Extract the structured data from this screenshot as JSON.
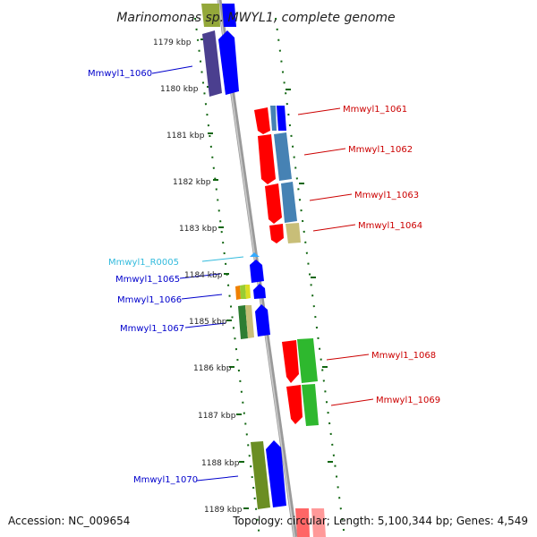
{
  "title": "Marinomonas sp. MWYL1, complete genome",
  "footer": {
    "accession": "Accession: NC_009654",
    "topology": "Topology: circular; Length: 5,100,344 bp; Genes: 4,549"
  },
  "ticks": [
    "1179 kbp",
    "1180 kbp",
    "1181 kbp",
    "1182 kbp",
    "1183 kbp",
    "1184 kbp",
    "1185 kbp",
    "1186 kbp",
    "1187 kbp",
    "1188 kbp",
    "1189 kbp"
  ],
  "labels": [
    {
      "text": "Mmwyl1_1060",
      "color": "#0000cc"
    },
    {
      "text": "Mmwyl1_1061",
      "color": "#cc0000"
    },
    {
      "text": "Mmwyl1_1062",
      "color": "#cc0000"
    },
    {
      "text": "Mmwyl1_1063",
      "color": "#cc0000"
    },
    {
      "text": "Mmwyl1_1064",
      "color": "#cc0000"
    },
    {
      "text": "Mmwyl1_R0005",
      "color": "#33bbdd"
    },
    {
      "text": "Mmwyl1_1065",
      "color": "#0000cc"
    },
    {
      "text": "Mmwyl1_1066",
      "color": "#0000cc"
    },
    {
      "text": "Mmwyl1_1067",
      "color": "#0000cc"
    },
    {
      "text": "Mmwyl1_1068",
      "color": "#cc0000"
    },
    {
      "text": "Mmwyl1_1069",
      "color": "#cc0000"
    },
    {
      "text": "Mmwyl1_1070",
      "color": "#0000cc"
    }
  ],
  "colors": {
    "forward": "#0000ff",
    "reverse": "#ff0000",
    "backbone": "#888888",
    "dots": "#116611",
    "olive": "#6b8e23",
    "purple": "#4b3f8f",
    "steel": "#4682b4",
    "khaki": "#c8be78",
    "green": "#2eb82e"
  }
}
